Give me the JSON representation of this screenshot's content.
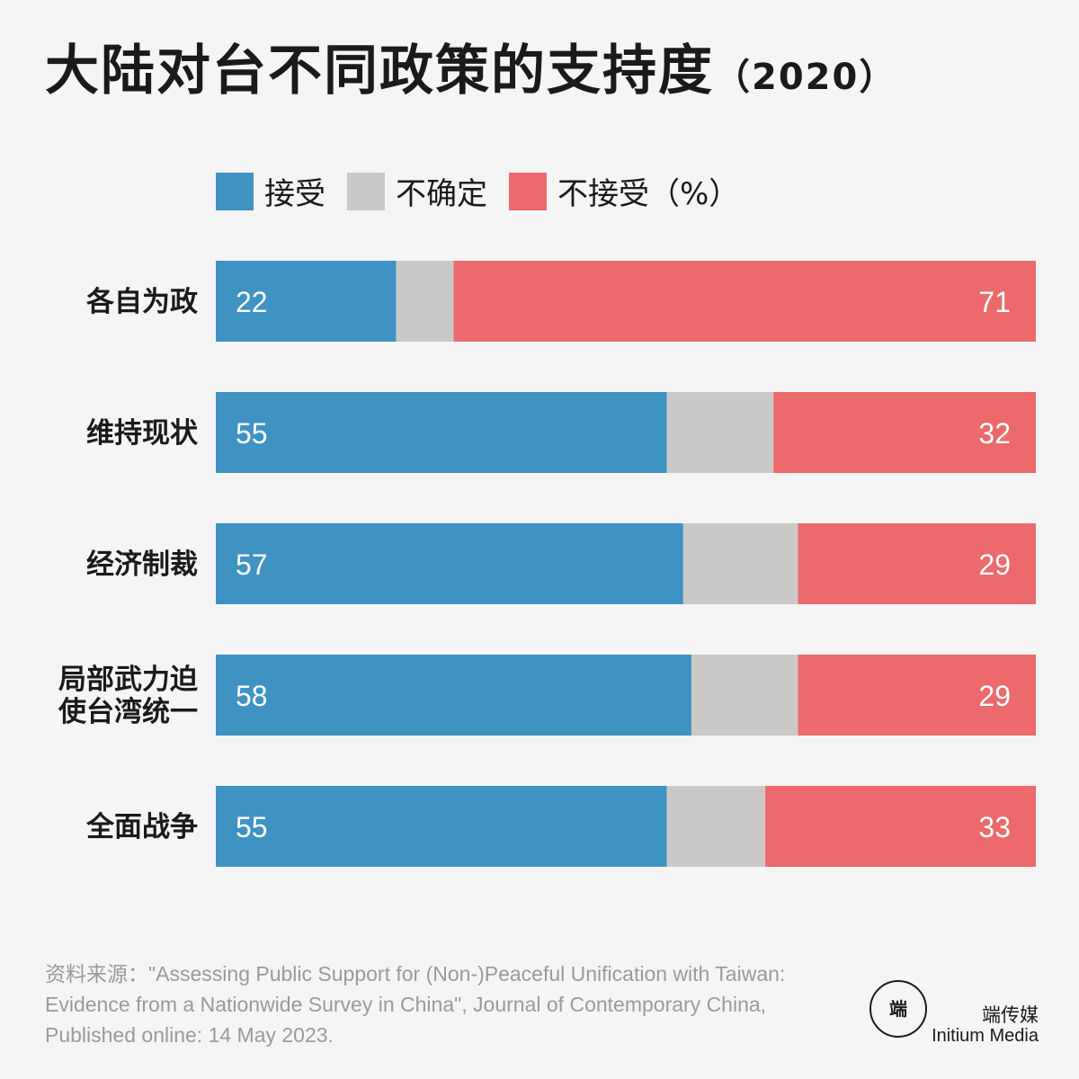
{
  "title": "大陆对台不同政策的支持度",
  "title_year": "（2020）",
  "legend": {
    "accept": "接受",
    "uncertain": "不确定",
    "reject": "不接受（%）"
  },
  "colors": {
    "accept": "#3f93c3",
    "uncertain": "#cbc9c7",
    "reject": "#ec6a6c",
    "background": "#f5f5f5"
  },
  "chart_data": {
    "type": "bar",
    "orientation": "horizontal",
    "stacked": true,
    "categories": [
      [
        "各自为政"
      ],
      [
        "维持现状"
      ],
      [
        "经济制裁"
      ],
      [
        "局部武力迫",
        "使台湾统一"
      ],
      [
        "全面战争"
      ]
    ],
    "series": [
      {
        "name": "接受",
        "values": [
          22,
          55,
          57,
          58,
          55
        ]
      },
      {
        "name": "不确定",
        "values": [
          7,
          13,
          14,
          13,
          12
        ]
      },
      {
        "name": "不接受",
        "values": [
          71,
          32,
          29,
          29,
          33
        ]
      }
    ],
    "xlim": [
      0,
      100
    ],
    "grid": false
  },
  "source": "资料来源：\"Assessing Public Support for (Non-)Peaceful Unification with Taiwan: Evidence from a Nationwide Survey in China\", Journal of Contemporary China, Published online: 14 May 2023.",
  "brand": {
    "logo_icon": "initium-logo-icon",
    "logo_text": "端",
    "name_cn": "端传媒",
    "name_en": "Initium Media"
  }
}
